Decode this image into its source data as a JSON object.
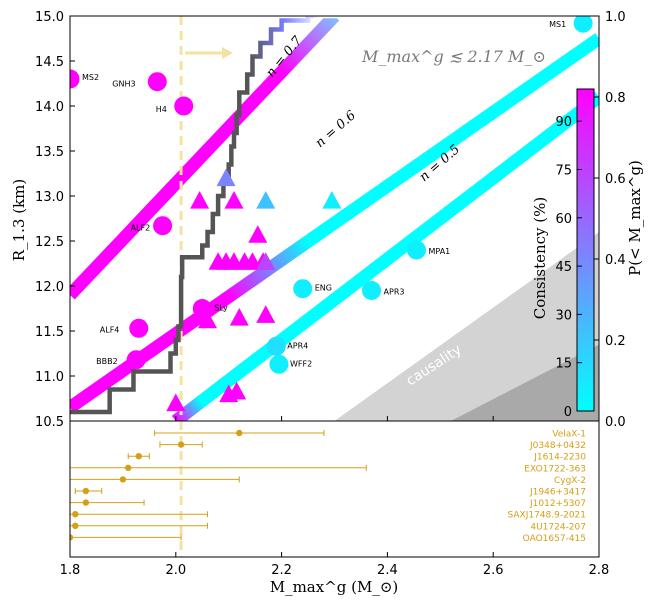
{
  "chart_data": [
    {
      "type": "scatter",
      "xlabel": "M_max^g (M_⊙)",
      "ylabel": "R_1.3 (km)",
      "xlim": [
        1.8,
        2.8
      ],
      "ylim": [
        10.5,
        15.0
      ],
      "x_ticks": [
        "1.8",
        "2.0",
        "2.2",
        "2.4",
        "2.6",
        "2.8"
      ],
      "y_ticks": [
        "10.5",
        "11.0",
        "11.5",
        "12.0",
        "12.5",
        "13.0",
        "13.5",
        "14.0",
        "14.5",
        "15.0"
      ],
      "annotations": {
        "mass_bound": "M_max^g ≲ 2.17 M_⊙",
        "causality": "causality",
        "n_labels": [
          "n = 0.7",
          "n = 0.6",
          "n = 0.5"
        ]
      },
      "mass_bound_line_x": 2.01,
      "colorbar": {
        "label_left": "Consistency (%)",
        "label_right": "P(< M_max^g)",
        "left_ticks": [
          "0",
          "15",
          "30",
          "45",
          "60",
          "75",
          "90"
        ],
        "right_ticks": [
          "0.0",
          "0.2",
          "0.4",
          "0.6",
          "0.8",
          "1.0"
        ],
        "colors": [
          "#00ffff",
          "#ff00ff"
        ]
      },
      "bands": [
        {
          "name": "n = 0.7",
          "x": [
            1.8,
            2.3
          ],
          "y": [
            11.9,
            15.0
          ]
        },
        {
          "name": "n = 0.6",
          "x": [
            1.8,
            2.8
          ],
          "y": [
            10.65,
            14.75
          ]
        },
        {
          "name": "n = 0.5",
          "x": [
            2.0,
            2.8
          ],
          "y": [
            10.5,
            14.1
          ]
        }
      ],
      "cdf_steps": [
        [
          1.8,
          10.6
        ],
        [
          1.875,
          10.6
        ],
        [
          1.875,
          10.85
        ],
        [
          1.92,
          10.85
        ],
        [
          1.92,
          11.05
        ],
        [
          1.99,
          11.05
        ],
        [
          1.99,
          11.25
        ],
        [
          2.0,
          11.25
        ],
        [
          2.0,
          11.4
        ],
        [
          2.005,
          11.4
        ],
        [
          2.005,
          11.55
        ],
        [
          2.01,
          11.55
        ],
        [
          2.01,
          12.1
        ],
        [
          2.012,
          12.1
        ],
        [
          2.012,
          12.32
        ],
        [
          2.05,
          12.32
        ],
        [
          2.05,
          12.45
        ],
        [
          2.06,
          12.45
        ],
        [
          2.06,
          12.6
        ],
        [
          2.07,
          12.6
        ],
        [
          2.07,
          12.8
        ],
        [
          2.08,
          12.8
        ],
        [
          2.08,
          13.0
        ],
        [
          2.09,
          13.0
        ],
        [
          2.09,
          13.15
        ],
        [
          2.1,
          13.15
        ],
        [
          2.1,
          13.35
        ],
        [
          2.105,
          13.35
        ],
        [
          2.105,
          13.55
        ],
        [
          2.11,
          13.55
        ],
        [
          2.11,
          13.7
        ],
        [
          2.115,
          13.7
        ],
        [
          2.115,
          13.9
        ],
        [
          2.12,
          13.9
        ],
        [
          2.12,
          14.15
        ],
        [
          2.135,
          14.15
        ],
        [
          2.135,
          14.35
        ],
        [
          2.145,
          14.35
        ],
        [
          2.145,
          14.55
        ],
        [
          2.16,
          14.55
        ],
        [
          2.16,
          14.7
        ],
        [
          2.18,
          14.7
        ],
        [
          2.18,
          14.85
        ],
        [
          2.2,
          14.85
        ],
        [
          2.2,
          14.95
        ],
        [
          2.25,
          14.95
        ],
        [
          2.25,
          15.0
        ],
        [
          2.8,
          15.0
        ]
      ],
      "eos": [
        {
          "name": "MS1",
          "x": 2.77,
          "y": 14.92,
          "shape": "circle",
          "p": 0.05
        },
        {
          "name": "MS2",
          "x": 1.8,
          "y": 14.3,
          "shape": "circle",
          "p": 0.9
        },
        {
          "name": "GNH3",
          "x": 1.965,
          "y": 14.27,
          "shape": "circle",
          "p": 0.9
        },
        {
          "name": "H4",
          "x": 2.015,
          "y": 14.0,
          "shape": "circle",
          "p": 0.9
        },
        {
          "name": "ALF2",
          "x": 1.975,
          "y": 12.67,
          "shape": "circle",
          "p": 0.9
        },
        {
          "name": "MPA1",
          "x": 2.455,
          "y": 12.4,
          "shape": "circle",
          "p": 0.05
        },
        {
          "name": "ENG",
          "x": 2.24,
          "y": 11.97,
          "shape": "circle",
          "p": 0.05
        },
        {
          "name": "APR3",
          "x": 2.37,
          "y": 11.95,
          "shape": "circle",
          "p": 0.05
        },
        {
          "name": "SLy",
          "x": 2.05,
          "y": 11.75,
          "shape": "circle",
          "p": 0.9
        },
        {
          "name": "ALF4",
          "x": 1.93,
          "y": 11.53,
          "shape": "circle",
          "p": 0.9
        },
        {
          "name": "APR4",
          "x": 2.19,
          "y": 11.33,
          "shape": "circle",
          "p": 0.1
        },
        {
          "name": "BBB2",
          "x": 1.925,
          "y": 11.18,
          "shape": "circle",
          "p": 0.9
        },
        {
          "name": "WFF2",
          "x": 2.195,
          "y": 11.13,
          "shape": "circle",
          "p": 0.05
        }
      ],
      "triangles": [
        {
          "x": 2.095,
          "y": 13.2,
          "p": 0.4
        },
        {
          "x": 2.045,
          "y": 12.95,
          "p": 0.9
        },
        {
          "x": 2.11,
          "y": 12.95,
          "p": 0.9
        },
        {
          "x": 2.17,
          "y": 12.95,
          "p": 0.2
        },
        {
          "x": 2.295,
          "y": 12.95,
          "p": 0.05
        },
        {
          "x": 2.155,
          "y": 12.57,
          "p": 0.9
        },
        {
          "x": 2.08,
          "y": 12.27,
          "p": 0.9
        },
        {
          "x": 2.095,
          "y": 12.27,
          "p": 0.9
        },
        {
          "x": 2.11,
          "y": 12.27,
          "p": 0.9
        },
        {
          "x": 2.13,
          "y": 12.27,
          "p": 0.9
        },
        {
          "x": 2.145,
          "y": 12.27,
          "p": 0.9
        },
        {
          "x": 2.165,
          "y": 12.27,
          "p": 0.9
        },
        {
          "x": 2.17,
          "y": 12.27,
          "p": 0.6
        },
        {
          "x": 2.06,
          "y": 11.62,
          "p": 0.9
        },
        {
          "x": 2.12,
          "y": 11.65,
          "p": 0.9
        },
        {
          "x": 2.17,
          "y": 11.68,
          "p": 0.9
        },
        {
          "x": 2.1,
          "y": 10.8,
          "p": 0.9
        },
        {
          "x": 2.115,
          "y": 10.83,
          "p": 0.9
        },
        {
          "x": 2.0,
          "y": 10.7,
          "p": 0.9
        }
      ]
    },
    {
      "type": "errorbar",
      "xlim": [
        1.8,
        2.8
      ],
      "pulsars": [
        {
          "name": "VelaX-1",
          "value": 2.12,
          "low": 1.96,
          "high": 2.28
        },
        {
          "name": "J0348+0432",
          "value": 2.01,
          "low": 1.97,
          "high": 2.05
        },
        {
          "name": "J1614-2230",
          "value": 1.93,
          "low": 1.91,
          "high": 1.95
        },
        {
          "name": "EXO1722-363",
          "value": 1.91,
          "low": 1.8,
          "high": 2.36
        },
        {
          "name": "CygX-2",
          "value": 1.9,
          "low": 1.8,
          "high": 2.12
        },
        {
          "name": "J1946+3417",
          "value": 1.83,
          "low": 1.81,
          "high": 1.86
        },
        {
          "name": "J1012+5307",
          "value": 1.83,
          "low": 1.8,
          "high": 1.94
        },
        {
          "name": "SAXJ1748.9-2021",
          "value": 1.81,
          "low": 1.8,
          "high": 2.06
        },
        {
          "name": "4U1724-207",
          "value": 1.81,
          "low": 1.8,
          "high": 2.06
        },
        {
          "name": "OAO1657-415",
          "value": 1.8,
          "low": 1.8,
          "high": 2.01
        }
      ]
    }
  ]
}
